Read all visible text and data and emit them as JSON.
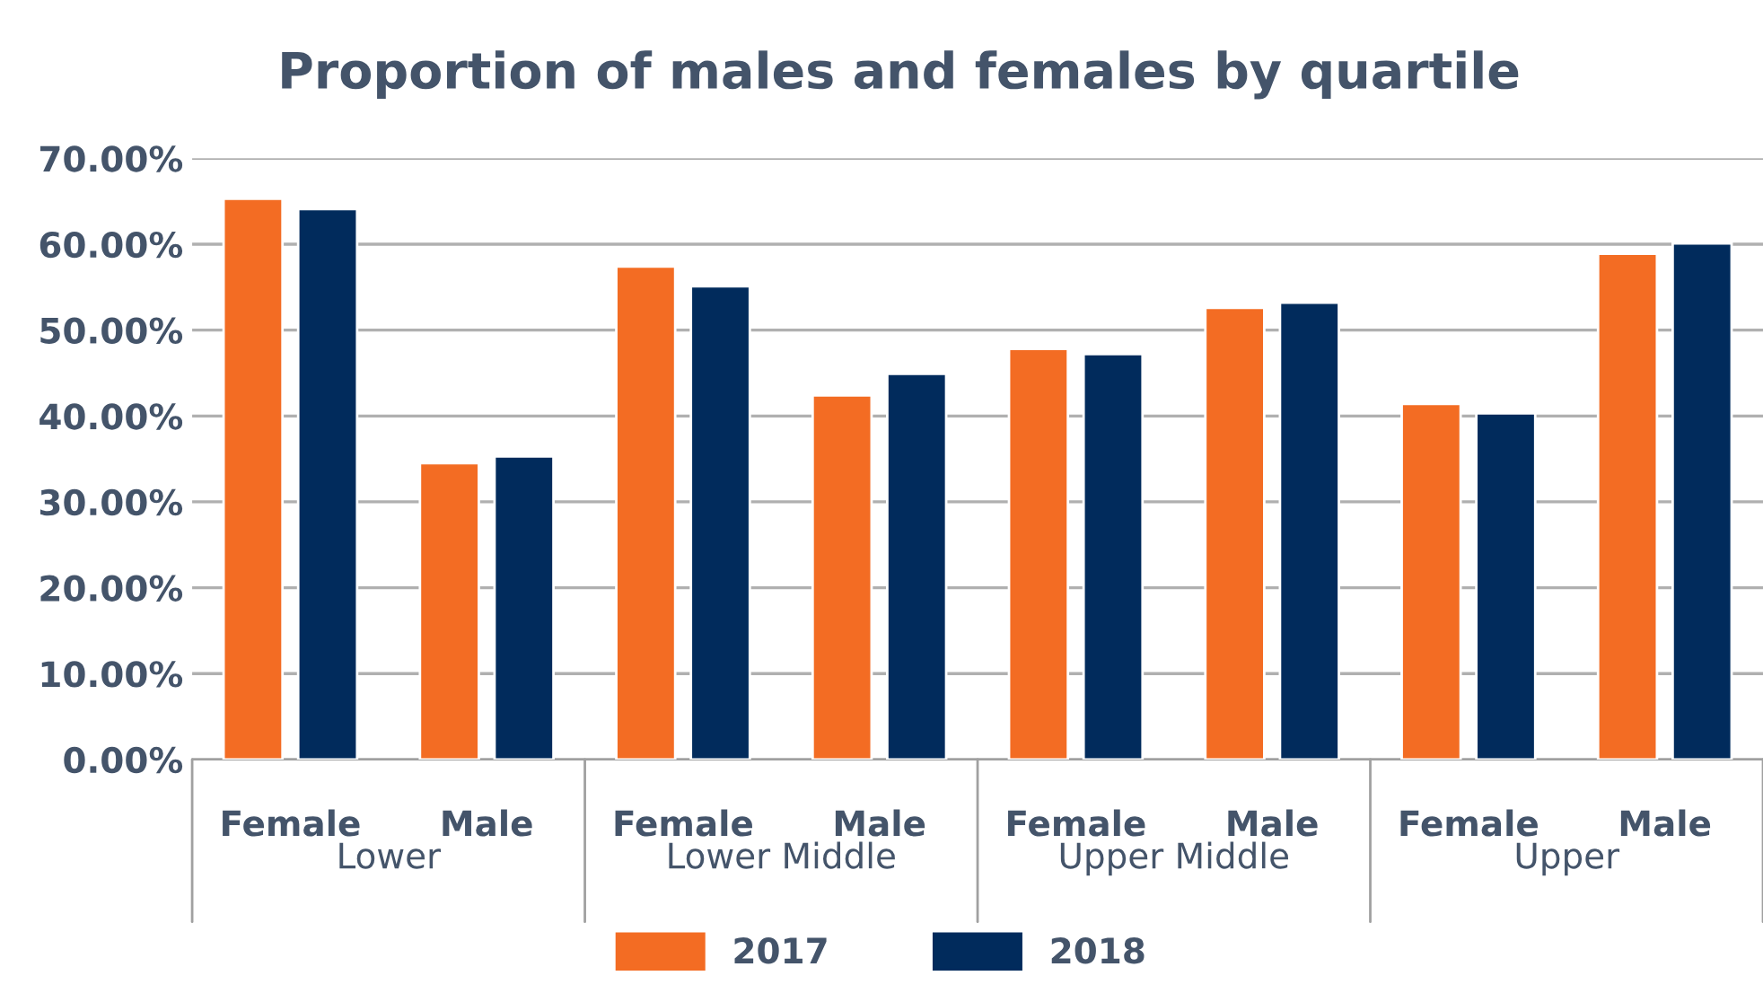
{
  "chart_data": {
    "type": "bar",
    "title": "Proportion of males and females by quartile",
    "categories": [
      "Female",
      "Male",
      "Female",
      "Male",
      "Female",
      "Male",
      "Female",
      "Male"
    ],
    "series": [
      {
        "name": "2017",
        "color": "#f36c23",
        "values": [
          65.3,
          34.5,
          57.4,
          42.4,
          47.8,
          52.6,
          41.4,
          58.9
        ]
      },
      {
        "name": "2018",
        "color": "#012b5c",
        "values": [
          64.1,
          35.3,
          55.1,
          44.9,
          47.2,
          53.2,
          40.3,
          60.1
        ]
      }
    ],
    "annotations": [
      "Lower",
      "Lower Middle",
      "Upper Middle",
      "Upper"
    ],
    "ylim": [
      0,
      70
    ],
    "yticks": [
      {
        "value": 0,
        "label": "0.00%"
      },
      {
        "value": 10,
        "label": "10.00%"
      },
      {
        "value": 20,
        "label": "20.00%"
      },
      {
        "value": 30,
        "label": "30.00%"
      },
      {
        "value": 40,
        "label": "40.00%"
      },
      {
        "value": 50,
        "label": "50.00%"
      },
      {
        "value": 60,
        "label": "60.00%"
      },
      {
        "value": 70,
        "label": "70.00%"
      }
    ],
    "grid": "y",
    "legend": "bottom"
  }
}
